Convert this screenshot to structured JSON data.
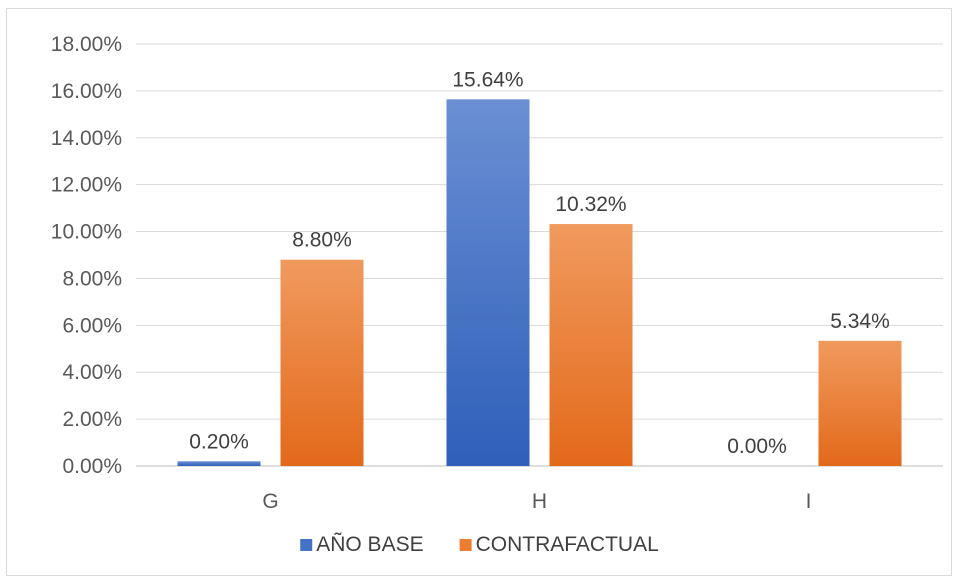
{
  "chart_data": {
    "type": "bar",
    "categories": [
      "G",
      "H",
      "I"
    ],
    "series": [
      {
        "name": "AÑO BASE",
        "values": [
          0.2,
          15.64,
          0.0
        ],
        "labels": [
          "0.20%",
          "15.64%",
          "0.00%"
        ],
        "color": "#4472C4"
      },
      {
        "name": "CONTRAFACTUAL",
        "values": [
          8.8,
          10.32,
          5.34
        ],
        "labels": [
          "8.80%",
          "10.32%",
          "5.34%"
        ],
        "color": "#ED7D31"
      }
    ],
    "ylim": [
      0,
      18
    ],
    "yticks": [
      0,
      2,
      4,
      6,
      8,
      10,
      12,
      14,
      16,
      18
    ],
    "ytick_labels": [
      "0.00%",
      "2.00%",
      "4.00%",
      "6.00%",
      "8.00%",
      "10.00%",
      "12.00%",
      "14.00%",
      "16.00%",
      "18.00%"
    ],
    "grid": true,
    "legend_position": "bottom",
    "title": "",
    "xlabel": "",
    "ylabel": ""
  }
}
